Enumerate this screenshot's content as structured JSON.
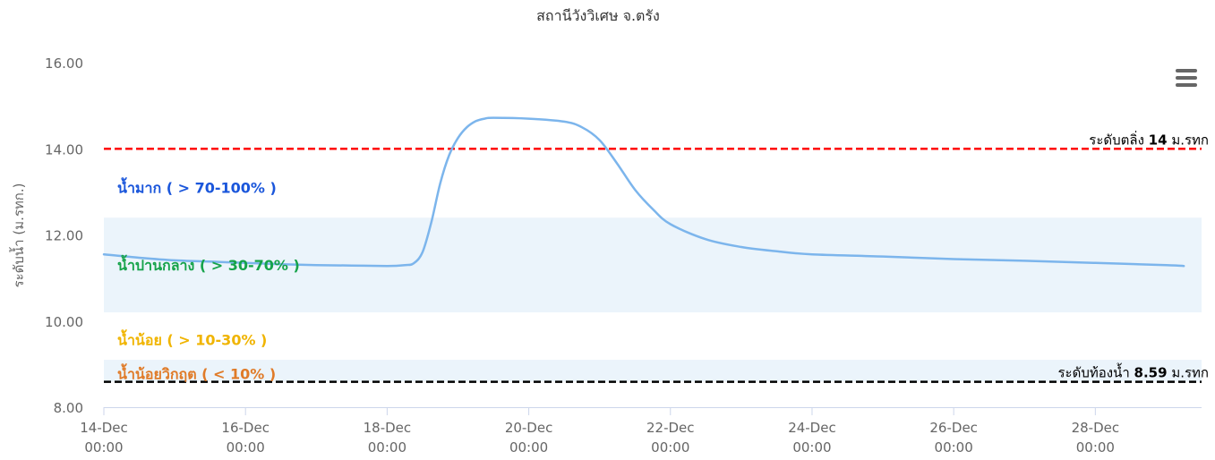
{
  "chart_data": {
    "type": "line",
    "title": "สถานีวังวิเศษ จ.ตรัง",
    "ylabel": "ระดับน้ำ (ม.รทก.)",
    "ylim": [
      8,
      16
    ],
    "yticks": [
      "8.00",
      "10.00",
      "12.00",
      "14.00",
      "16.00"
    ],
    "xlim": [
      "2023-12-14 00:00",
      "2023-12-29 12:00"
    ],
    "xticks": [
      {
        "date": "14-Dec",
        "time": "00:00",
        "x": "2023-12-14 00:00"
      },
      {
        "date": "16-Dec",
        "time": "00:00",
        "x": "2023-12-16 00:00"
      },
      {
        "date": "18-Dec",
        "time": "00:00",
        "x": "2023-12-18 00:00"
      },
      {
        "date": "20-Dec",
        "time": "00:00",
        "x": "2023-12-20 00:00"
      },
      {
        "date": "22-Dec",
        "time": "00:00",
        "x": "2023-12-22 00:00"
      },
      {
        "date": "24-Dec",
        "time": "00:00",
        "x": "2023-12-24 00:00"
      },
      {
        "date": "26-Dec",
        "time": "00:00",
        "x": "2023-12-26 00:00"
      },
      {
        "date": "28-Dec",
        "time": "00:00",
        "x": "2023-12-28 00:00"
      }
    ],
    "grid": false,
    "series": [
      {
        "color": "#7cb5ec",
        "points": [
          [
            "2023-12-14 00:00",
            11.55
          ],
          [
            "2023-12-14 12:00",
            11.47
          ],
          [
            "2023-12-15 00:00",
            11.41
          ],
          [
            "2023-12-15 12:00",
            11.38
          ],
          [
            "2023-12-16 00:00",
            11.35
          ],
          [
            "2023-12-16 12:00",
            11.32
          ],
          [
            "2023-12-17 00:00",
            11.3
          ],
          [
            "2023-12-17 12:00",
            11.29
          ],
          [
            "2023-12-18 00:00",
            11.28
          ],
          [
            "2023-12-18 06:00",
            11.3
          ],
          [
            "2023-12-18 09:00",
            11.34
          ],
          [
            "2023-12-18 12:00",
            11.6
          ],
          [
            "2023-12-18 15:00",
            12.3
          ],
          [
            "2023-12-18 18:00",
            13.2
          ],
          [
            "2023-12-18 21:00",
            13.85
          ],
          [
            "2023-12-19 00:00",
            14.25
          ],
          [
            "2023-12-19 03:00",
            14.5
          ],
          [
            "2023-12-19 06:00",
            14.64
          ],
          [
            "2023-12-19 09:00",
            14.7
          ],
          [
            "2023-12-19 12:00",
            14.72
          ],
          [
            "2023-12-20 00:00",
            14.7
          ],
          [
            "2023-12-20 12:00",
            14.63
          ],
          [
            "2023-12-20 18:00",
            14.5
          ],
          [
            "2023-12-21 00:00",
            14.2
          ],
          [
            "2023-12-21 06:00",
            13.65
          ],
          [
            "2023-12-21 12:00",
            13.05
          ],
          [
            "2023-12-21 18:00",
            12.6
          ],
          [
            "2023-12-22 00:00",
            12.25
          ],
          [
            "2023-12-22 12:00",
            11.9
          ],
          [
            "2023-12-23 00:00",
            11.72
          ],
          [
            "2023-12-23 12:00",
            11.62
          ],
          [
            "2023-12-24 00:00",
            11.55
          ],
          [
            "2023-12-25 00:00",
            11.5
          ],
          [
            "2023-12-26 00:00",
            11.44
          ],
          [
            "2023-12-27 00:00",
            11.4
          ],
          [
            "2023-12-28 00:00",
            11.35
          ],
          [
            "2023-12-29 00:00",
            11.3
          ],
          [
            "2023-12-29 06:00",
            11.28
          ]
        ]
      }
    ],
    "bands": [
      {
        "label": "น้ำมาก ( > 70-100% )",
        "color": "#1a56db",
        "fill": "#ffffff",
        "from": 12.4,
        "to": 16
      },
      {
        "label": "น้ำปานกลาง ( > 30-70% )",
        "color": "#16a34a",
        "fill": "#ebf4fb",
        "from": 10.2,
        "to": 12.4
      },
      {
        "label": "น้ำน้อย ( > 10-30% )",
        "color": "#f0b400",
        "fill": "#ffffff",
        "from": 9.1,
        "to": 10.2
      },
      {
        "label": "น้ำน้อยวิกฤต ( < 10% )",
        "color": "#e07b28",
        "fill": "#ebf4fb",
        "from": 8.59,
        "to": 9.1
      }
    ],
    "reference_lines": [
      {
        "value": 14,
        "color": "#ff0000",
        "label_prefix": "ระดับตลิ่ง ",
        "label_value": "14",
        "label_suffix": " ม.รทก"
      },
      {
        "value": 8.59,
        "color": "#000000",
        "label_prefix": "ระดับท้องน้ำ ",
        "label_value": "8.59",
        "label_suffix": " ม.รทก"
      }
    ]
  },
  "menu": {
    "icon": "hamburger-menu-icon"
  }
}
